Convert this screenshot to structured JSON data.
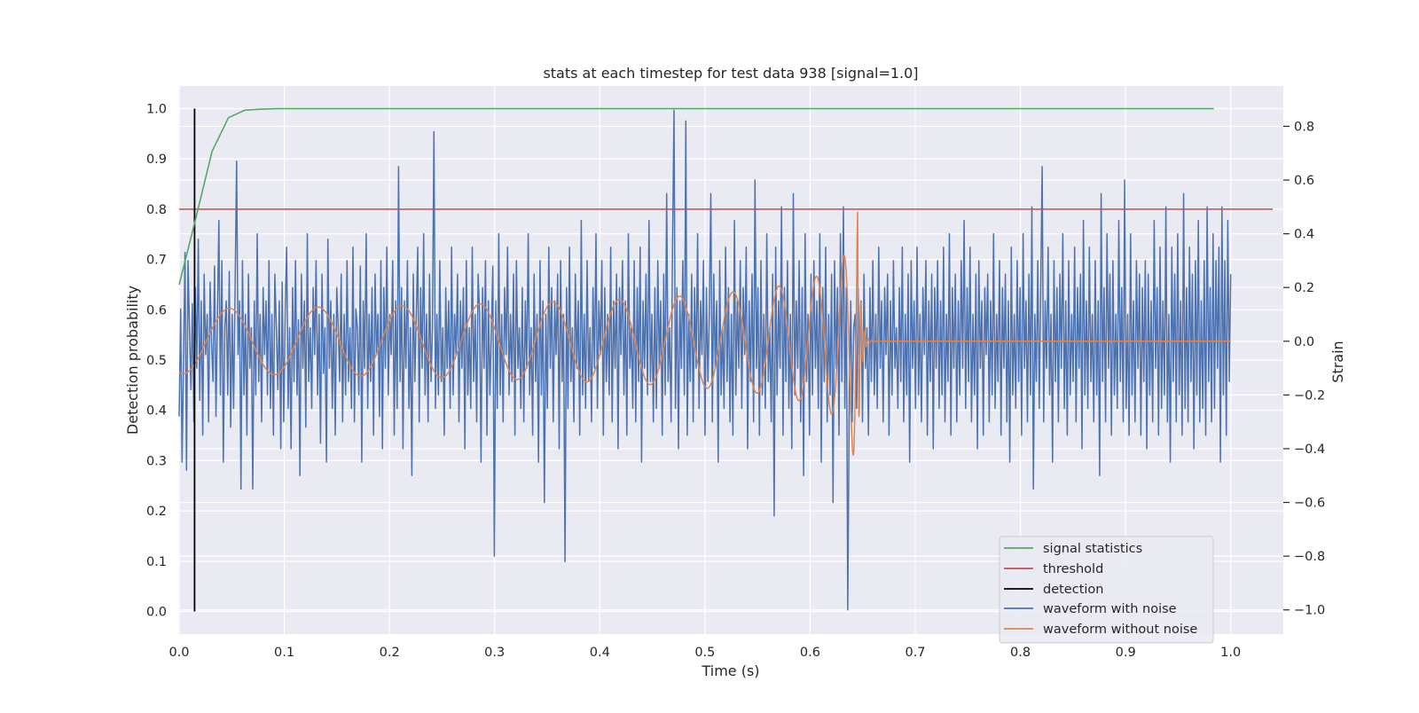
{
  "chart_data": {
    "type": "line",
    "title": "stats at each timestep for test data 938 [signal=1.0]",
    "xlabel": "Time (s)",
    "ylabel": "Detection probability",
    "ylabel_right": "Strain",
    "xlim": [
      0.0,
      1.05
    ],
    "ylim": [
      -0.045,
      1.045
    ],
    "ylim_right": [
      -1.09,
      0.95
    ],
    "x_ticks": [
      "0.0",
      "0.1",
      "0.2",
      "0.3",
      "0.4",
      "0.5",
      "0.6",
      "0.7",
      "0.8",
      "0.9",
      "1.0"
    ],
    "y_ticks": [
      "0.0",
      "0.1",
      "0.2",
      "0.3",
      "0.4",
      "0.5",
      "0.6",
      "0.7",
      "0.8",
      "0.9",
      "1.0"
    ],
    "y_ticks_right": [
      "−1.0",
      "−0.8",
      "−0.6",
      "−0.4",
      "−0.2",
      "0.0",
      "0.2",
      "0.4",
      "0.6",
      "0.8"
    ],
    "grid": true,
    "legend_position": "lower-right",
    "colors": {
      "background": "#eaeaf2",
      "grid": "#ffffff",
      "signal_statistics": "#55a868",
      "threshold": "#c44e52",
      "detection": "#000000",
      "waveform_with_noise": "#4c72b0",
      "waveform_without_noise": "#dd8452"
    },
    "series": [
      {
        "name": "signal statistics",
        "axis": "left",
        "x": [
          0.0,
          0.01562,
          0.03125,
          0.04688,
          0.0625,
          0.07813,
          0.09375,
          0.2,
          0.4,
          0.6,
          0.8,
          0.984
        ],
        "y": [
          0.65,
          0.78,
          0.915,
          0.982,
          0.997,
          0.999,
          1.0,
          1.0,
          1.0,
          1.0,
          1.0,
          1.0
        ]
      },
      {
        "name": "threshold",
        "axis": "left",
        "x": [
          0.0,
          1.04
        ],
        "y": [
          0.8,
          0.8
        ]
      },
      {
        "name": "detection",
        "axis": "left",
        "x": [
          0.01464,
          0.01464
        ],
        "y": [
          0.0,
          1.0
        ]
      },
      {
        "name": "waveform with noise",
        "axis": "right",
        "x_start": 0.0,
        "x_end": 1.0,
        "y": [
          -0.28,
          0.12,
          -0.45,
          -0.05,
          0.33,
          -0.48,
          0.3,
          0.05,
          -0.18,
          0.14,
          -0.3,
          0.2,
          -0.1,
          0.38,
          -0.22,
          0.15,
          -0.35,
          0.25,
          -0.05,
          0.1,
          -0.3,
          0.22,
          0.0,
          -0.15,
          0.28,
          -0.28,
          0.1,
          0.45,
          -0.2,
          0.3,
          -0.45,
          0.05,
          0.15,
          -0.2,
          0.26,
          -0.32,
          0.1,
          -0.25,
          0.2,
          0.67,
          -0.05,
          0.15,
          -0.55,
          0.3,
          -0.2,
          0.1,
          -0.35,
          0.25,
          -0.1,
          0.05,
          -0.55,
          0.15,
          -0.2,
          0.4,
          -0.15,
          0.1,
          -0.3,
          0.2,
          -0.05,
          0.15,
          -0.2,
          0.3,
          -0.25,
          0.1,
          -0.35,
          0.25,
          0.05,
          -0.18,
          0.15,
          -0.4,
          0.22,
          -0.3,
          0.12,
          0.35,
          -0.25,
          0.05,
          -0.4,
          0.2,
          -0.15,
          0.3,
          -0.2,
          0.08,
          -0.5,
          0.25,
          -0.1,
          0.15,
          -0.32,
          0.4,
          -0.15,
          0.05,
          -0.25,
          0.2,
          -0.05,
          0.3,
          -0.2,
          0.1,
          -0.38,
          0.25,
          -0.12,
          0.05,
          -0.45,
          0.38,
          -0.1,
          0.15,
          -0.25,
          0.1,
          -0.35,
          0.2,
          0.05,
          -0.15,
          0.25,
          -0.3,
          0.1,
          -0.2,
          0.3,
          -0.15,
          0.05,
          -0.25,
          0.35,
          -0.3,
          0.12,
          0.05,
          -0.2,
          0.28,
          -0.45,
          0.15,
          -0.1,
          0.4,
          -0.25,
          0.1,
          -0.15,
          0.2,
          -0.35,
          0.25,
          -0.05,
          0.1,
          -0.28,
          0.3,
          -0.4,
          0.2,
          -0.1,
          0.35,
          -0.2,
          0.1,
          -0.05,
          0.3,
          -0.35,
          0.15,
          -0.25,
          0.65,
          -0.15,
          0.2,
          -0.4,
          0.15,
          -0.1,
          0.3,
          -0.25,
          0.05,
          -0.5,
          0.25,
          -0.15,
          0.1,
          0.35,
          -0.3,
          0.2,
          -0.1,
          0.4,
          -0.2,
          0.1,
          -0.3,
          0.25,
          -0.15,
          0.05,
          0.78,
          -0.25,
          0.1,
          -0.2,
          0.3,
          -0.15,
          0.05,
          -0.35,
          0.2,
          -0.1,
          0.15,
          -0.25,
          0.35,
          -0.2,
          0.1,
          -0.05,
          0.25,
          -0.3,
          0.15,
          -0.1,
          0.2,
          -0.4,
          0.3,
          -0.2,
          0.05,
          -0.25,
          0.35,
          -0.15,
          0.1,
          -0.3,
          0.25,
          0.1,
          -0.45,
          0.2,
          -0.1,
          0.3,
          -0.35,
          0.15,
          -0.2,
          0.05,
          0.28,
          -0.8,
          0.15,
          -0.25,
          0.4,
          -0.2,
          0.1,
          -0.3,
          0.2,
          -0.05,
          0.35,
          -0.2,
          0.1,
          -0.15,
          0.25,
          -0.35,
          0.3,
          -0.1,
          0.05,
          -0.25,
          0.2,
          -0.3,
          0.15,
          -0.1,
          0.4,
          -0.2,
          0.05,
          -0.35,
          0.25,
          -0.15,
          0.1,
          -0.45,
          0.3,
          -0.2,
          0.15,
          -0.6,
          0.1,
          -0.25,
          0.35,
          -0.1,
          0.2,
          -0.3,
          0.15,
          -0.05,
          0.25,
          -0.4,
          0.3,
          -0.15,
          0.1,
          -0.82,
          0.2,
          -0.25,
          0.35,
          -0.15,
          0.05,
          -0.3,
          0.25,
          -0.1,
          0.15,
          -0.35,
          0.45,
          -0.2,
          0.1,
          -0.25,
          0.3,
          -0.15,
          0.05,
          -0.3,
          0.2,
          -0.1,
          0.4,
          -0.25,
          0.15,
          -0.05,
          0.3,
          -0.35,
          0.2,
          -0.15,
          0.1,
          -0.2,
          0.35,
          -0.3,
          0.15,
          -0.1,
          0.25,
          -0.4,
          0.2,
          -0.05,
          0.3,
          -0.2,
          0.15,
          -0.35,
          0.4,
          -0.1,
          0.05,
          -0.25,
          0.3,
          -0.3,
          0.2,
          -0.15,
          0.35,
          -0.45,
          0.15,
          -0.1,
          0.25,
          -0.2,
          0.45,
          -0.15,
          0.1,
          -0.3,
          0.2,
          -0.25,
          0.3,
          -0.1,
          0.15,
          -0.35,
          0.25,
          -0.2,
          0.55,
          -0.15,
          0.05,
          -0.3,
          0.35,
          0.86,
          -0.25,
          0.2,
          -0.4,
          0.15,
          -0.1,
          0.3,
          -0.2,
          0.82,
          -0.35,
          0.1,
          -0.15,
          0.25,
          -0.3,
          0.2,
          -0.1,
          0.4,
          -0.25,
          0.15,
          -0.05,
          0.3,
          -0.35,
          0.2,
          -0.15,
          0.1,
          0.55,
          -0.3,
          0.25,
          -0.1,
          0.15,
          -0.45,
          0.3,
          -0.2,
          0.05,
          -0.25,
          0.35,
          -0.15,
          0.2,
          -0.3,
          0.1,
          -0.35,
          0.45,
          -0.2,
          0.15,
          -0.1,
          0.3,
          -0.25,
          0.2,
          -0.05,
          0.35,
          -0.4,
          0.15,
          -0.15,
          0.25,
          -0.3,
          0.6,
          -0.1,
          0.2,
          -0.35,
          0.3,
          -0.2,
          0.1,
          -0.25,
          0.4,
          -0.15,
          0.05,
          -0.3,
          0.25,
          -0.65,
          0.35,
          -0.2,
          0.15,
          -0.1,
          0.5,
          -0.35,
          0.2,
          -0.15,
          0.3,
          -0.25,
          0.1,
          -0.4,
          0.55,
          -0.2,
          0.15,
          -0.1,
          0.3,
          -0.3,
          0.2,
          -0.5,
          0.4,
          -0.15,
          0.1,
          -0.35,
          0.25,
          -0.2,
          0.3,
          -0.1,
          0.15,
          -0.25,
          0.4,
          -0.45,
          0.2,
          -0.15,
          0.35,
          -0.3,
          0.1,
          -0.2,
          0.25,
          -0.6,
          0.3,
          -0.1,
          0.2,
          -0.35,
          0.4,
          -0.15,
          0.5,
          -0.25,
          0.2,
          -1.0,
          -0.2,
          0.15,
          -0.3,
          0.05,
          0.1,
          -0.25,
          0.2,
          -0.05,
          0.15,
          -0.3,
          0.25,
          -0.1,
          0.05,
          -0.35,
          0.2,
          -0.15,
          0.3,
          -0.2,
          0.1,
          -0.25,
          0.35,
          -0.1,
          0.15,
          -0.3,
          0.2,
          -0.05,
          0.25,
          -0.35,
          0.15,
          -0.2,
          0.3,
          -0.1,
          0.05,
          -0.25,
          0.2,
          -0.15,
          0.35,
          -0.3,
          0.1,
          -0.2,
          0.25,
          -0.45,
          0.3,
          -0.1,
          0.15,
          -0.25,
          0.35,
          -0.2,
          0.1,
          -0.3,
          0.2,
          -0.05,
          0.3,
          -0.35,
          0.15,
          -0.15,
          0.25,
          -0.4,
          0.2,
          -0.1,
          0.3,
          -0.25,
          0.15,
          -0.2,
          0.35,
          -0.3,
          0.1,
          -0.15,
          0.4,
          -0.35,
          0.2,
          -0.1,
          0.25,
          -0.3,
          0.15,
          -0.2,
          0.3,
          -0.1,
          0.45,
          -0.25,
          0.2,
          -0.15,
          0.35,
          -0.3,
          0.1,
          -0.2,
          0.25,
          -0.4,
          0.3,
          -0.1,
          0.15,
          -0.35,
          0.2,
          -0.05,
          0.25,
          -0.3,
          0.15,
          -0.2,
          0.4,
          -0.25,
          0.1,
          -0.15,
          0.3,
          -0.35,
          0.2,
          -0.1,
          0.25,
          -0.3,
          0.15,
          -0.45,
          0.35,
          -0.2,
          0.1,
          -0.25,
          0.3,
          -0.15,
          0.2,
          -0.35,
          0.4,
          -0.1,
          0.15,
          -0.3,
          0.25,
          -0.2,
          0.5,
          -0.55,
          0.1,
          -0.15,
          0.3,
          -0.25,
          0.2,
          0.65,
          -0.3,
          0.15,
          -0.1,
          0.35,
          -0.2,
          0.1,
          -0.45,
          0.3,
          -0.15,
          0.2,
          -0.3,
          0.25,
          -0.1,
          0.4,
          -0.25,
          0.15,
          -0.35,
          0.3,
          -0.2,
          0.1,
          -0.15,
          0.35,
          -0.3,
          0.2,
          -0.1,
          0.25,
          -0.4,
          0.45,
          -0.2,
          0.15,
          -0.25,
          0.35,
          -0.15,
          0.1,
          -0.3,
          0.3,
          -0.2,
          0.15,
          -0.5,
          0.55,
          -0.15,
          0.2,
          -0.3,
          0.4,
          -0.1,
          0.25,
          -0.35,
          0.3,
          -0.2,
          0.1,
          -0.25,
          0.45,
          -0.15,
          0.2,
          -0.3,
          0.6,
          -0.25,
          0.1,
          -0.35,
          0.4,
          -0.2,
          0.15,
          -0.3,
          0.3,
          -0.1,
          0.25,
          -0.35,
          0.2,
          -0.15,
          0.3,
          -0.4,
          0.25,
          -0.2,
          0.15,
          -0.3,
          0.45,
          -0.1,
          0.2,
          -0.35,
          0.35,
          -0.25,
          0.15,
          -0.2,
          0.5,
          -0.3,
          0.1,
          -0.45,
          0.35,
          -0.15,
          0.25,
          -0.3,
          0.4,
          -0.2,
          0.15,
          -0.35,
          0.55,
          -0.25,
          0.2,
          -0.3,
          0.35,
          -0.15,
          0.25,
          -0.4,
          0.3,
          -0.2,
          0.45,
          -0.3,
          0.15,
          -0.25,
          0.3,
          -0.35,
          0.5,
          -0.15,
          0.2,
          -0.3,
          0.4,
          -0.25,
          0.3,
          -0.1,
          0.35,
          -0.45,
          0.5,
          -0.2,
          0.3,
          -0.35,
          0.45,
          -0.15,
          0.25
        ]
      },
      {
        "name": "waveform without noise",
        "axis": "right",
        "model": "chirp",
        "merger_time": 0.645,
        "end_time": 1.0
      }
    ]
  }
}
